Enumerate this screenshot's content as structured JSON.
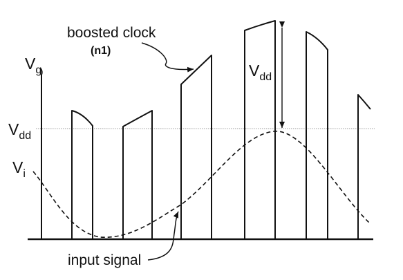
{
  "labels": {
    "boosted_clock": "boosted clock",
    "n1": "(n1)",
    "vg_main": "V",
    "vg_sub": "g",
    "vdd_left_main": "V",
    "vdd_left_sub": "dd",
    "vi_main": "V",
    "vi_sub": "i",
    "vdd_right_main": "V",
    "vdd_right_sub": "dd",
    "input_signal": "input signal"
  },
  "colors": {
    "stroke": "#111111",
    "reference_line": "#9a9a9a",
    "background": "#ffffff"
  }
}
